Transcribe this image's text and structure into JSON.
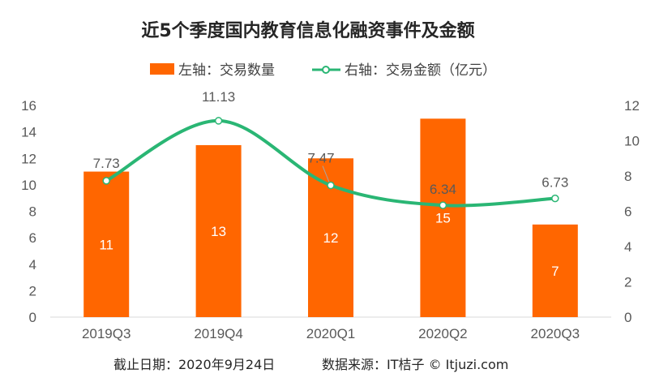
{
  "title": "近5个季度国内教育信息化融资事件及金额",
  "legend": {
    "bar_label": "左轴：交易数量",
    "line_label": "右轴：交易金额（亿元）"
  },
  "footer": {
    "date": "截止日期：2020年9月24日",
    "source": "数据来源：IT桔子 © Itjuzi.com"
  },
  "colors": {
    "bar": "#ff6600",
    "line": "#2ab674",
    "axis_text": "#595959",
    "baseline": "#d9d9d9"
  },
  "chart_data": {
    "type": "bar",
    "categories": [
      "2019Q3",
      "2019Q4",
      "2020Q1",
      "2020Q2",
      "2020Q3"
    ],
    "series": [
      {
        "name": "左轴：交易数量",
        "type": "bar",
        "axis": "left",
        "values": [
          11,
          13,
          12,
          15,
          7
        ],
        "value_labels": [
          "11",
          "13",
          "12",
          "15",
          "7"
        ]
      },
      {
        "name": "右轴：交易金额（亿元）",
        "type": "line",
        "axis": "right",
        "values": [
          7.73,
          11.13,
          7.47,
          6.34,
          6.73
        ],
        "value_labels": [
          "7.73",
          "11.13",
          "7.47",
          "6.34",
          "6.73"
        ]
      }
    ],
    "left_axis": {
      "ylim": [
        0,
        16
      ],
      "ticks": [
        "0",
        "2",
        "4",
        "6",
        "8",
        "10",
        "12",
        "14",
        "16"
      ]
    },
    "right_axis": {
      "ylim": [
        0,
        12
      ],
      "ticks": [
        "0",
        "2",
        "4",
        "6",
        "8",
        "10",
        "12"
      ]
    },
    "grid": false,
    "legend_position": "top"
  }
}
